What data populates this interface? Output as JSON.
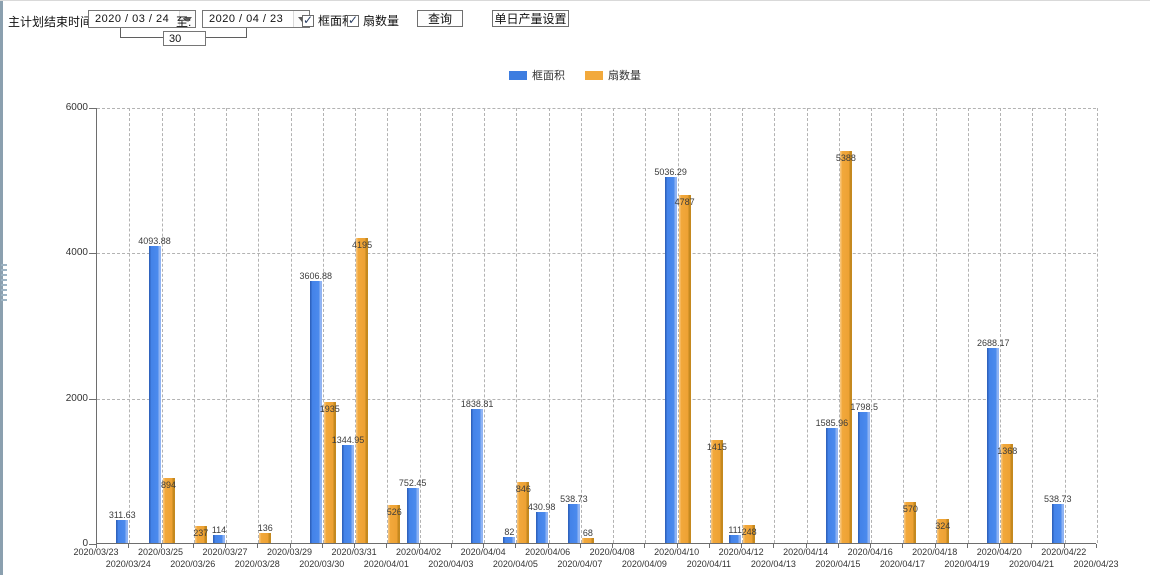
{
  "toolbar": {
    "end_time_label": "主计划结束时间:",
    "date_from": "2020 / 03 / 24",
    "to_label": "至:",
    "date_to": "2020 / 04 / 23",
    "span_days": "30",
    "checkbox_area": {
      "label": "框面积",
      "checked": true
    },
    "checkbox_count": {
      "label": "扇数量",
      "checked": true
    },
    "query_button": "查询",
    "daily_output_button": "单日产量设置"
  },
  "legend": {
    "items": [
      {
        "label": "框面积",
        "color": "#3D7DE0"
      },
      {
        "label": "扇数量",
        "color": "#F2A93C"
      }
    ]
  },
  "chart_data": {
    "type": "bar",
    "title": "",
    "xlabel": "",
    "ylabel": "",
    "ylim": [
      0,
      6000
    ],
    "yticks": [
      0,
      2000,
      4000,
      6000
    ],
    "grid": true,
    "legend_position": "top",
    "categories": [
      "2020/03/23",
      "2020/03/24",
      "2020/03/25",
      "2020/03/26",
      "2020/03/27",
      "2020/03/28",
      "2020/03/29",
      "2020/03/30",
      "2020/03/31",
      "2020/04/01",
      "2020/04/02",
      "2020/04/03",
      "2020/04/04",
      "2020/04/05",
      "2020/04/06",
      "2020/04/07",
      "2020/04/08",
      "2020/04/09",
      "2020/04/10",
      "2020/04/11",
      "2020/04/12",
      "2020/04/13",
      "2020/04/14",
      "2020/04/15",
      "2020/04/16",
      "2020/04/17",
      "2020/04/18",
      "2020/04/19",
      "2020/04/20",
      "2020/04/21",
      "2020/04/22",
      "2020/04/23"
    ],
    "series": [
      {
        "name": "框面积",
        "color": "#3D7DE0",
        "values": [
          null,
          311.63,
          4093.88,
          null,
          114,
          null,
          null,
          3606.88,
          1344.95,
          null,
          752.45,
          null,
          1838.81,
          82,
          430.98,
          538.73,
          null,
          null,
          5036.29,
          null,
          111,
          null,
          null,
          1585.96,
          1798.5,
          null,
          null,
          null,
          2688.17,
          null,
          538.73,
          null
        ]
      },
      {
        "name": "扇数量",
        "color": "#F2A93C",
        "values": [
          null,
          null,
          894,
          237,
          null,
          136,
          null,
          1935,
          4195,
          526,
          null,
          null,
          null,
          846,
          null,
          68,
          null,
          null,
          4787,
          1415,
          248,
          null,
          null,
          5388,
          null,
          570,
          324,
          null,
          1368,
          null,
          null,
          null
        ]
      }
    ]
  }
}
